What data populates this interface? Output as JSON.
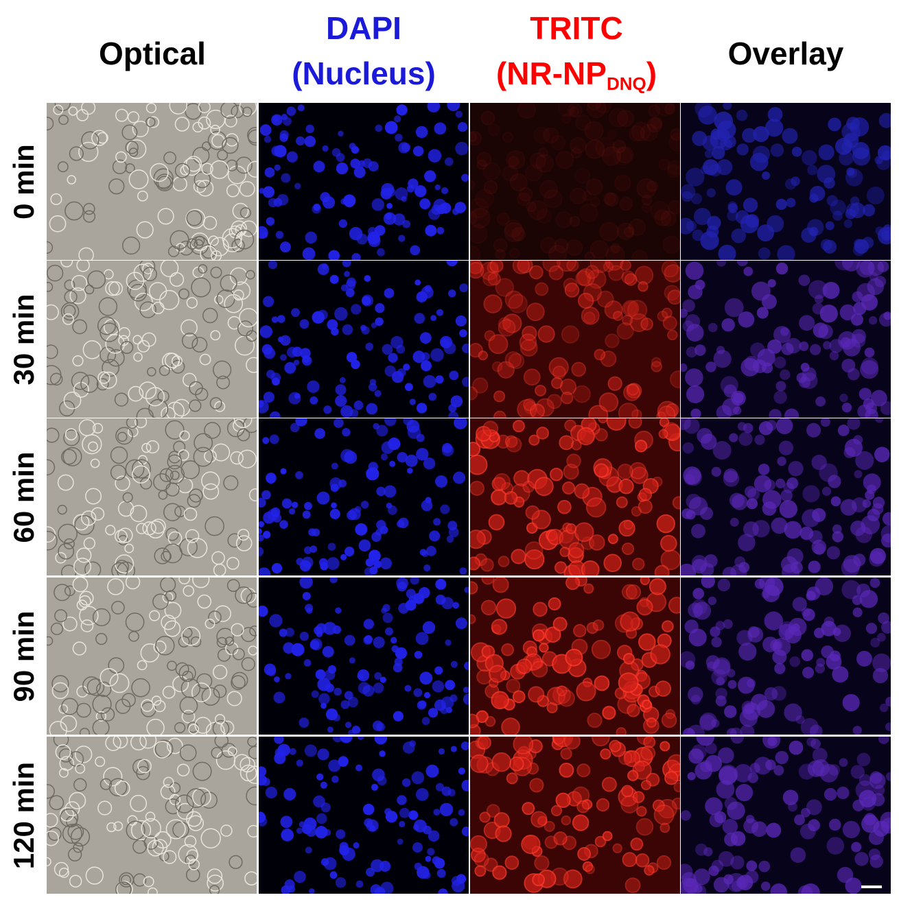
{
  "columns": [
    {
      "title": "Optical"
    },
    {
      "title": "DAPI",
      "subtitle": "(Nucleus)"
    },
    {
      "title": "TRITC",
      "subtitle": {
        "main": "(NR-NP",
        "sub": "DNQ",
        "close": ")"
      }
    },
    {
      "title": "Overlay"
    }
  ],
  "rows": [
    "0 min",
    "30 min",
    "60 min",
    "90 min",
    "120 min"
  ]
}
